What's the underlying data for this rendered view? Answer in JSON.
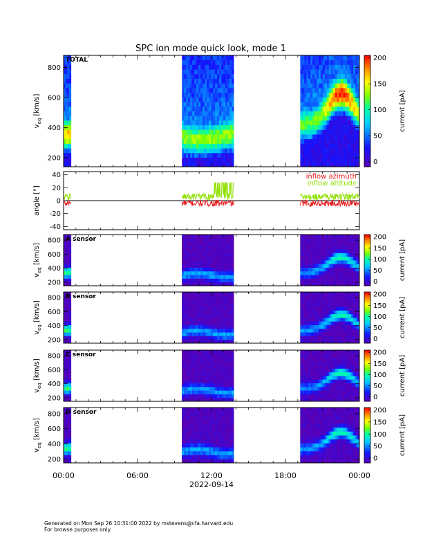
{
  "title": "SPC ion mode quick look, mode 1",
  "footer": {
    "line1": "Generated on Mon Sep 26 10:31:00 2022 by mstevens@cfa.harvard.edu",
    "line2": "For browse purposes only."
  },
  "colors": {
    "inflow_azimuth": "#e61a1a",
    "inflow_altitude": "#8fe000"
  },
  "chart_data": [
    {
      "type": "heatmap",
      "panel": "total",
      "label": "TOTAL",
      "ylabel_main": "v",
      "ylabel_sub": "eq",
      "ylabel_unit": " [km/s]",
      "yticks": [
        200,
        400,
        600,
        800
      ],
      "ylim": [
        140,
        880
      ],
      "xlim_hours": [
        0,
        24
      ],
      "data_intervals_hours": [
        [
          0,
          0.6
        ],
        [
          9.6,
          13.8
        ],
        [
          19.2,
          24
        ]
      ],
      "colorbar": {
        "label": "current [pA]",
        "ticks": [
          0,
          50,
          100,
          150,
          200
        ],
        "range": [
          -10,
          205
        ]
      }
    },
    {
      "type": "line",
      "panel": "angles",
      "ylabel": "angle [°]",
      "yticks": [
        -40,
        -20,
        0,
        20,
        40
      ],
      "ylim": [
        -45,
        45
      ],
      "xlim_hours": [
        0,
        24
      ],
      "reference_line": 0,
      "series": [
        {
          "name": "inflow azimuth",
          "color": "#e61a1a",
          "mean": -4
        },
        {
          "name": "inflow altitude",
          "color": "#8fe000",
          "mean": 6
        }
      ]
    },
    {
      "type": "heatmap",
      "panel": "a",
      "label": "A sensor",
      "ylabel_main": "v",
      "ylabel_sub": "eq",
      "ylabel_unit": " [km/s]",
      "yticks": [
        200,
        400,
        600,
        800
      ],
      "ylim": [
        150,
        880
      ],
      "xlim_hours": [
        0,
        24
      ],
      "colorbar": {
        "label": "current [pA]",
        "ticks": [
          0,
          50,
          100,
          150,
          200
        ],
        "range": [
          -20,
          210
        ]
      }
    },
    {
      "type": "heatmap",
      "panel": "b",
      "label": "B sensor",
      "ylabel_main": "v",
      "ylabel_sub": "eq",
      "ylabel_unit": " [km/s]",
      "yticks": [
        200,
        400,
        600,
        800
      ],
      "ylim": [
        150,
        880
      ],
      "xlim_hours": [
        0,
        24
      ],
      "colorbar": {
        "label": "current [pA]",
        "ticks": [
          0,
          50,
          100,
          150,
          200
        ],
        "range": [
          -20,
          210
        ]
      }
    },
    {
      "type": "heatmap",
      "panel": "c",
      "label": "C sensor",
      "ylabel_main": "v",
      "ylabel_sub": "eq",
      "ylabel_unit": " [km/s]",
      "yticks": [
        200,
        400,
        600,
        800
      ],
      "ylim": [
        150,
        880
      ],
      "xlim_hours": [
        0,
        24
      ],
      "colorbar": {
        "label": "current [pA]",
        "ticks": [
          0,
          50,
          100,
          150,
          200
        ],
        "range": [
          -20,
          210
        ]
      }
    },
    {
      "type": "heatmap",
      "panel": "d",
      "label": "D sensor",
      "ylabel_main": "v",
      "ylabel_sub": "eq",
      "ylabel_unit": " [km/s]",
      "yticks": [
        200,
        400,
        600,
        800
      ],
      "ylim": [
        150,
        880
      ],
      "xlim_hours": [
        0,
        24
      ],
      "colorbar": {
        "label": "current [pA]",
        "ticks": [
          0,
          50,
          100,
          150,
          200
        ],
        "range": [
          -20,
          210
        ]
      }
    }
  ],
  "x_axis": {
    "tick_labels": [
      "00:00",
      "06:00",
      "12:00",
      "18:00",
      "00:00"
    ],
    "tick_hours": [
      0,
      6,
      12,
      18,
      24
    ],
    "date_label": "2022-09-14"
  }
}
